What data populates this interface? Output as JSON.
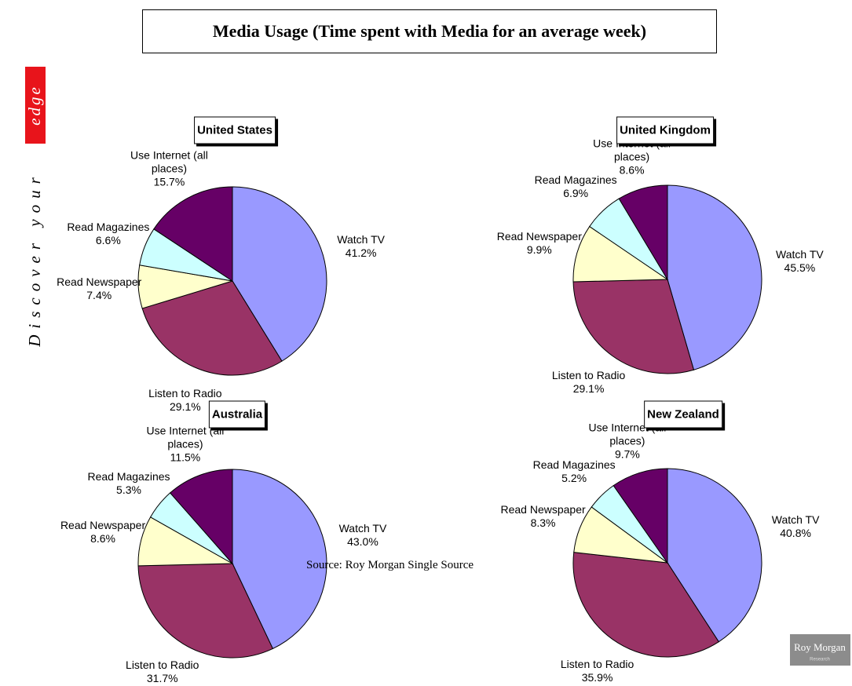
{
  "title": "Media Usage (Time spent with Media for an average week)",
  "source": "Source: Roy Morgan Single Source",
  "side_text": [
    "Discover your",
    "edge"
  ],
  "logo": {
    "name": "Roy Morgan",
    "subtitle": "Research"
  },
  "chart_data": [
    {
      "type": "pie",
      "title": "United States",
      "categories": [
        "Watch TV",
        "Listen to Radio",
        "Read Newspaper",
        "Read Magazines",
        "Use Internet (all places)"
      ],
      "values": [
        41.2,
        29.1,
        7.4,
        6.6,
        15.7
      ],
      "value_labels": [
        "41.2%",
        "29.1%",
        "7.4%",
        "6.6%",
        "15.7%"
      ],
      "colors": [
        "#9999ff",
        "#993366",
        "#ffffcc",
        "#ccffff",
        "#660066"
      ]
    },
    {
      "type": "pie",
      "title": "United Kingdom",
      "categories": [
        "Watch TV",
        "Listen to Radio",
        "Read Newspaper",
        "Read Magazines",
        "Use Internet (all places)"
      ],
      "values": [
        45.5,
        29.1,
        9.9,
        6.9,
        8.6
      ],
      "value_labels": [
        "45.5%",
        "29.1%",
        "9.9%",
        "6.9%",
        "8.6%"
      ],
      "colors": [
        "#9999ff",
        "#993366",
        "#ffffcc",
        "#ccffff",
        "#660066"
      ]
    },
    {
      "type": "pie",
      "title": "Australia",
      "categories": [
        "Watch TV",
        "Listen to Radio",
        "Read Newspaper",
        "Read Magazines",
        "Use Internet (all places)"
      ],
      "values": [
        43.0,
        31.7,
        8.6,
        5.3,
        11.5
      ],
      "value_labels": [
        "43.0%",
        "31.7%",
        "8.6%",
        "5.3%",
        "11.5%"
      ],
      "colors": [
        "#9999ff",
        "#993366",
        "#ffffcc",
        "#ccffff",
        "#660066"
      ]
    },
    {
      "type": "pie",
      "title": "New Zealand",
      "categories": [
        "Watch TV",
        "Listen to Radio",
        "Read Newspaper",
        "Read Magazines",
        "Use Internet (all places)"
      ],
      "values": [
        40.8,
        35.9,
        8.3,
        5.2,
        9.7
      ],
      "value_labels": [
        "40.8%",
        "35.9%",
        "8.3%",
        "5.2%",
        "9.7%"
      ],
      "colors": [
        "#9999ff",
        "#993366",
        "#ffffcc",
        "#ccffff",
        "#660066"
      ]
    }
  ]
}
